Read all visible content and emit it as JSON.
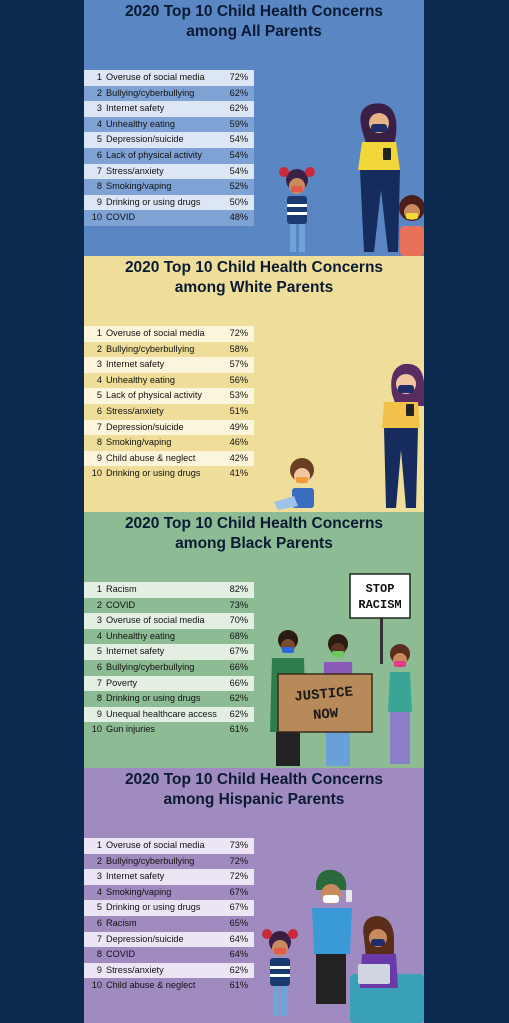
{
  "panels": [
    {
      "id": "all",
      "title_line1": "2020 Top 10 Child Health Concerns",
      "title_line2": "among All Parents",
      "bg": "#5a86c4",
      "row_light": "#dde6f4",
      "row_dark": "#7fa2d4",
      "rows": [
        {
          "n": "1",
          "label": "Overuse of social media",
          "value": "72%"
        },
        {
          "n": "2",
          "label": "Bullying/cyberbullying",
          "value": "62%"
        },
        {
          "n": "3",
          "label": "Internet safety",
          "value": "62%"
        },
        {
          "n": "4",
          "label": "Unhealthy eating",
          "value": "59%"
        },
        {
          "n": "5",
          "label": "Depression/suicide",
          "value": "54%"
        },
        {
          "n": "6",
          "label": "Lack of physical activity",
          "value": "54%"
        },
        {
          "n": "7",
          "label": "Stress/anxiety",
          "value": "54%"
        },
        {
          "n": "8",
          "label": "Smoking/vaping",
          "value": "52%"
        },
        {
          "n": "9",
          "label": "Drinking or using drugs",
          "value": "50%"
        },
        {
          "n": "10",
          "label": "COVID",
          "value": "48%"
        }
      ]
    },
    {
      "id": "white",
      "title_line1": "2020 Top 10 Child Health Concerns",
      "title_line2": "among White Parents",
      "bg": "#efde9a",
      "row_light": "#fbf5dc",
      "row_dark": "#efde9a",
      "rows": [
        {
          "n": "1",
          "label": "Overuse of social media",
          "value": "72%"
        },
        {
          "n": "2",
          "label": "Bullying/cyberbullying",
          "value": "58%"
        },
        {
          "n": "3",
          "label": "Internet safety",
          "value": "57%"
        },
        {
          "n": "4",
          "label": "Unhealthy eating",
          "value": "56%"
        },
        {
          "n": "5",
          "label": "Lack of physical activity",
          "value": "53%"
        },
        {
          "n": "6",
          "label": "Stress/anxiety",
          "value": "51%"
        },
        {
          "n": "7",
          "label": "Depression/suicide",
          "value": "49%"
        },
        {
          "n": "8",
          "label": "Smoking/vaping",
          "value": "46%"
        },
        {
          "n": "9",
          "label": "Child abuse & neglect",
          "value": "42%"
        },
        {
          "n": "10",
          "label": "Drinking or using drugs",
          "value": "41%"
        }
      ]
    },
    {
      "id": "black",
      "title_line1": "2020 Top 10 Child Health Concerns",
      "title_line2": "among Black Parents",
      "bg": "#8dbb94",
      "row_light": "#e2efe2",
      "row_dark": "#8dbb94",
      "rows": [
        {
          "n": "1",
          "label": "Racism",
          "value": "82%"
        },
        {
          "n": "2",
          "label": "COVID",
          "value": "73%"
        },
        {
          "n": "3",
          "label": "Overuse of social media",
          "value": "70%"
        },
        {
          "n": "4",
          "label": "Unhealthy eating",
          "value": "68%"
        },
        {
          "n": "5",
          "label": "Internet safety",
          "value": "67%"
        },
        {
          "n": "6",
          "label": "Bullying/cyberbullying",
          "value": "66%"
        },
        {
          "n": "7",
          "label": "Poverty",
          "value": "66%"
        },
        {
          "n": "8",
          "label": "Drinking or using drugs",
          "value": "62%"
        },
        {
          "n": "9",
          "label": "Unequal healthcare access",
          "value": "62%"
        },
        {
          "n": "10",
          "label": "Gun injuries",
          "value": "61%"
        }
      ]
    },
    {
      "id": "hispanic",
      "title_line1": "2020 Top 10 Child Health Concerns",
      "title_line2": "among Hispanic Parents",
      "bg": "#a08bc0",
      "row_light": "#ece6f4",
      "row_dark": "#a08bc0",
      "rows": [
        {
          "n": "1",
          "label": "Overuse of social media",
          "value": "73%"
        },
        {
          "n": "2",
          "label": "Bullying/cyberbullying",
          "value": "72%"
        },
        {
          "n": "3",
          "label": "Internet safety",
          "value": "72%"
        },
        {
          "n": "4",
          "label": "Smoking/vaping",
          "value": "67%"
        },
        {
          "n": "5",
          "label": "Drinking or using drugs",
          "value": "67%"
        },
        {
          "n": "6",
          "label": "Racism",
          "value": "65%"
        },
        {
          "n": "7",
          "label": "Depression/suicide",
          "value": "64%"
        },
        {
          "n": "8",
          "label": "COVID",
          "value": "64%"
        },
        {
          "n": "9",
          "label": "Stress/anxiety",
          "value": "62%"
        },
        {
          "n": "10",
          "label": "Child abuse & neglect",
          "value": "61%"
        }
      ]
    }
  ],
  "signs": {
    "stop_line1": "STOP",
    "stop_line2": "RACISM",
    "justice_line1": "JUSTICE",
    "justice_line2": "NOW"
  }
}
